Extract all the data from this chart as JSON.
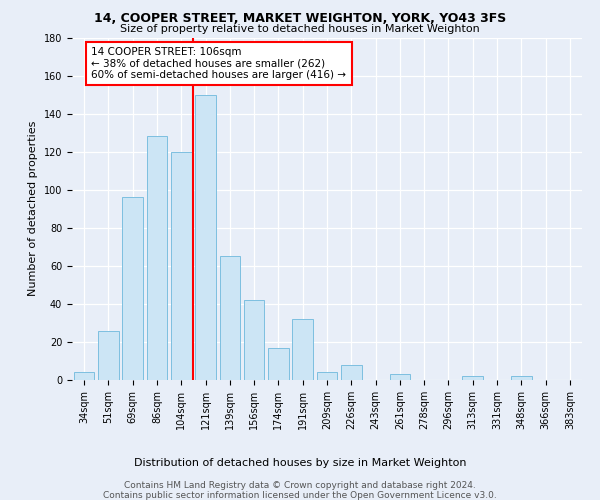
{
  "title1": "14, COOPER STREET, MARKET WEIGHTON, YORK, YO43 3FS",
  "title2": "Size of property relative to detached houses in Market Weighton",
  "xlabel": "Distribution of detached houses by size in Market Weighton",
  "ylabel": "Number of detached properties",
  "bar_labels": [
    "34sqm",
    "51sqm",
    "69sqm",
    "86sqm",
    "104sqm",
    "121sqm",
    "139sqm",
    "156sqm",
    "174sqm",
    "191sqm",
    "209sqm",
    "226sqm",
    "243sqm",
    "261sqm",
    "278sqm",
    "296sqm",
    "313sqm",
    "331sqm",
    "348sqm",
    "366sqm",
    "383sqm"
  ],
  "bar_values": [
    4,
    26,
    96,
    128,
    120,
    150,
    65,
    42,
    17,
    32,
    4,
    8,
    0,
    3,
    0,
    0,
    2,
    0,
    2,
    0,
    0
  ],
  "bar_color": "#cce5f5",
  "bar_edgecolor": "#7dbfe0",
  "annotation_text": "14 COOPER STREET: 106sqm\n← 38% of detached houses are smaller (262)\n60% of semi-detached houses are larger (416) →",
  "ylim": [
    0,
    180
  ],
  "yticks": [
    0,
    20,
    40,
    60,
    80,
    100,
    120,
    140,
    160,
    180
  ],
  "red_line_index": 4.5,
  "footer1": "Contains HM Land Registry data © Crown copyright and database right 2024.",
  "footer2": "Contains public sector information licensed under the Open Government Licence v3.0.",
  "background_color": "#e8eef8",
  "grid_color": "#ffffff",
  "title1_fontsize": 9,
  "title2_fontsize": 8,
  "ylabel_fontsize": 8,
  "xlabel_fontsize": 8,
  "tick_fontsize": 7,
  "footer_fontsize": 6.5,
  "annot_fontsize": 7.5
}
